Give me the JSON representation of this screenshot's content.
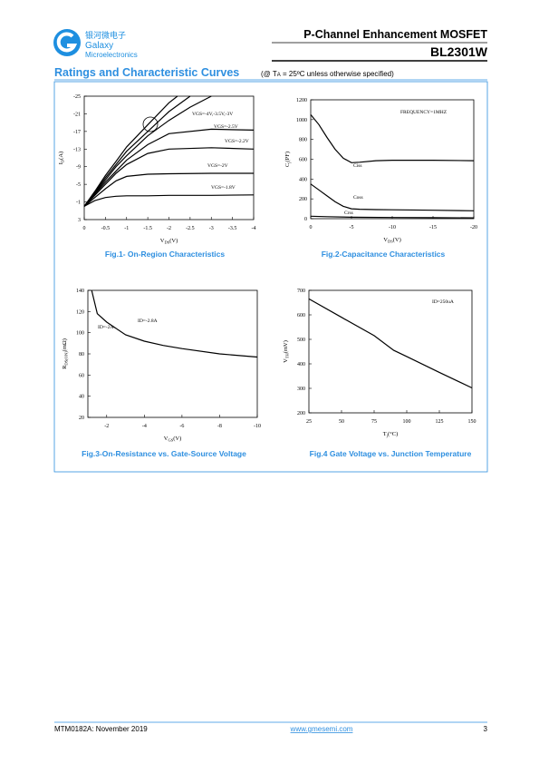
{
  "header": {
    "logo_cn": "银河微电子",
    "logo_en": "Galaxy",
    "logo_en2": "Microelectronics",
    "title": "P-Channel Enhancement MOSFET",
    "part": "BL2301W"
  },
  "section": {
    "title": "Ratings and Characteristic Curves",
    "note_pre": "(@ T",
    "note_sub": "A",
    "note_post": " = 25ºC unless otherwise specified)"
  },
  "footer": {
    "doc": "MTM0182A: November 2019",
    "url": "www.gmesemi.com",
    "page": "3"
  },
  "chart_data": [
    {
      "type": "line",
      "caption": "Fig.1- On-Region Characteristics",
      "xlabel": {
        "main": "V",
        "sub": "DS",
        "rest": "(V)"
      },
      "ylabel": {
        "main": "I",
        "sub": "D",
        "rest": "(A)"
      },
      "xlim": [
        0,
        -4
      ],
      "ylim": [
        3,
        -25
      ],
      "xticks": [
        0,
        -0.5,
        -1,
        -1.5,
        -2,
        -2.5,
        -3,
        -3.5,
        -4
      ],
      "yticks": [
        3,
        -1,
        -5,
        -9,
        -13,
        -17,
        -21,
        -25
      ],
      "annotations": [
        "VGS=-4V,-3.5V,-3V",
        "VGS=-2.5V",
        "VGS=-2.2V",
        "VGS=-2V",
        "VGS=-1.8V"
      ],
      "series": [
        {
          "x": [
            0,
            -0.25,
            -0.5,
            -0.75,
            -1,
            -1.5,
            -2,
            -3,
            -4
          ],
          "values": [
            0,
            -1.3,
            -2,
            -2.3,
            -2.4,
            -2.4,
            -2.5,
            -2.5,
            -2.6
          ]
        },
        {
          "x": [
            0,
            -0.25,
            -0.5,
            -0.75,
            -1,
            -1.5,
            -2,
            -3,
            -4
          ],
          "values": [
            0,
            -2,
            -4,
            -5.8,
            -6.8,
            -7.3,
            -7.4,
            -7.5,
            -7.5
          ]
        },
        {
          "x": [
            0,
            -0.25,
            -0.5,
            -0.75,
            -1,
            -1.5,
            -2,
            -3,
            -4
          ],
          "values": [
            0,
            -2.5,
            -5,
            -7.5,
            -9.5,
            -12,
            -13,
            -13.3,
            -13
          ]
        },
        {
          "x": [
            0,
            -0.25,
            -0.5,
            -0.75,
            -1,
            -1.5,
            -2,
            -3,
            -4
          ],
          "values": [
            0,
            -2.8,
            -5.5,
            -8,
            -10.5,
            -14,
            -16.5,
            -17.5,
            -17.3
          ]
        },
        {
          "x": [
            0,
            -0.25,
            -0.5,
            -0.75,
            -1,
            -1.5,
            -2,
            -2.5,
            -3
          ],
          "values": [
            0,
            -3,
            -6,
            -9,
            -11.5,
            -16,
            -19.5,
            -22.5,
            -25
          ]
        },
        {
          "x": [
            0,
            -0.25,
            -0.5,
            -0.75,
            -1,
            -1.5,
            -2,
            -2.5
          ],
          "values": [
            0,
            -3.2,
            -6.5,
            -9.5,
            -12.5,
            -17,
            -21.5,
            -25
          ]
        },
        {
          "x": [
            0,
            -0.25,
            -0.5,
            -0.75,
            -1,
            -1.5,
            -2,
            -2.2
          ],
          "values": [
            0,
            -3.4,
            -7,
            -10.2,
            -13.5,
            -18.5,
            -23.5,
            -25
          ]
        }
      ]
    },
    {
      "type": "line",
      "caption": "Fig.2-Capacitance Characteristics",
      "xlabel": {
        "main": "V",
        "sub": "DS",
        "rest": "(V)"
      },
      "ylabel": {
        "main": "C",
        "sub": "j",
        "rest": "(PF)"
      },
      "xlim": [
        0,
        -20
      ],
      "ylim": [
        0,
        1200
      ],
      "xticks": [
        0,
        -5,
        -10,
        -15,
        -20
      ],
      "yticks": [
        0,
        200,
        400,
        600,
        800,
        1000,
        1200
      ],
      "annotations": [
        "FREQUENCY=1MHZ"
      ],
      "series": [
        {
          "name": "Ciss",
          "x": [
            0,
            -1,
            -2,
            -3,
            -4,
            -5,
            -6,
            -8,
            -10,
            -15,
            -20
          ],
          "values": [
            1050,
            950,
            820,
            700,
            610,
            565,
            570,
            585,
            590,
            590,
            585
          ]
        },
        {
          "name": "Coss",
          "x": [
            0,
            -1,
            -2,
            -3,
            -4,
            -5,
            -6,
            -8,
            -10,
            -15,
            -20
          ],
          "values": [
            350,
            290,
            230,
            170,
            125,
            100,
            95,
            92,
            90,
            85,
            80
          ]
        },
        {
          "name": "Crss",
          "x": [
            0,
            -2,
            -5,
            -10,
            -15,
            -20
          ],
          "values": [
            25,
            20,
            15,
            12,
            10,
            8
          ]
        }
      ]
    },
    {
      "type": "line",
      "caption": "Fig.3-On-Resistance vs. Gate-Source Voltage",
      "xlabel": {
        "main": "V",
        "sub": "GS",
        "rest": "(V)"
      },
      "ylabel": {
        "main": "R",
        "sub": "DS(ON)",
        "rest": "(mΩ)"
      },
      "xlim": [
        -1,
        -10
      ],
      "ylim": [
        20,
        140
      ],
      "xticks": [
        -2,
        -4,
        -6,
        -8,
        -10
      ],
      "yticks": [
        20,
        40,
        60,
        80,
        100,
        120,
        140
      ],
      "annotations": [
        "ID=-2.8A",
        "ID=-2A"
      ],
      "series": [
        {
          "x": [
            -1.2,
            -1.5,
            -2,
            -3,
            -4,
            -5,
            -6,
            -8,
            -10
          ],
          "values": [
            140,
            118,
            110,
            98,
            92,
            88,
            85,
            80,
            77
          ]
        }
      ]
    },
    {
      "type": "line",
      "caption": "Fig.4 Gate Voltage vs. Junction Temperature",
      "xlabel": {
        "main": "T",
        "sub": "j",
        "rest": "(°C)"
      },
      "ylabel": {
        "main": "V",
        "sub": "TH",
        "rest": "(mV)"
      },
      "xlim": [
        25,
        150
      ],
      "ylim": [
        200,
        700
      ],
      "xticks": [
        25,
        50,
        75,
        100,
        125,
        150
      ],
      "yticks": [
        200,
        300,
        400,
        500,
        600,
        700
      ],
      "annotations": [
        "ID=250uA"
      ],
      "series": [
        {
          "x": [
            25,
            50,
            75,
            90,
            100,
            125,
            150
          ],
          "values": [
            665,
            590,
            515,
            455,
            430,
            365,
            302
          ]
        }
      ]
    }
  ]
}
